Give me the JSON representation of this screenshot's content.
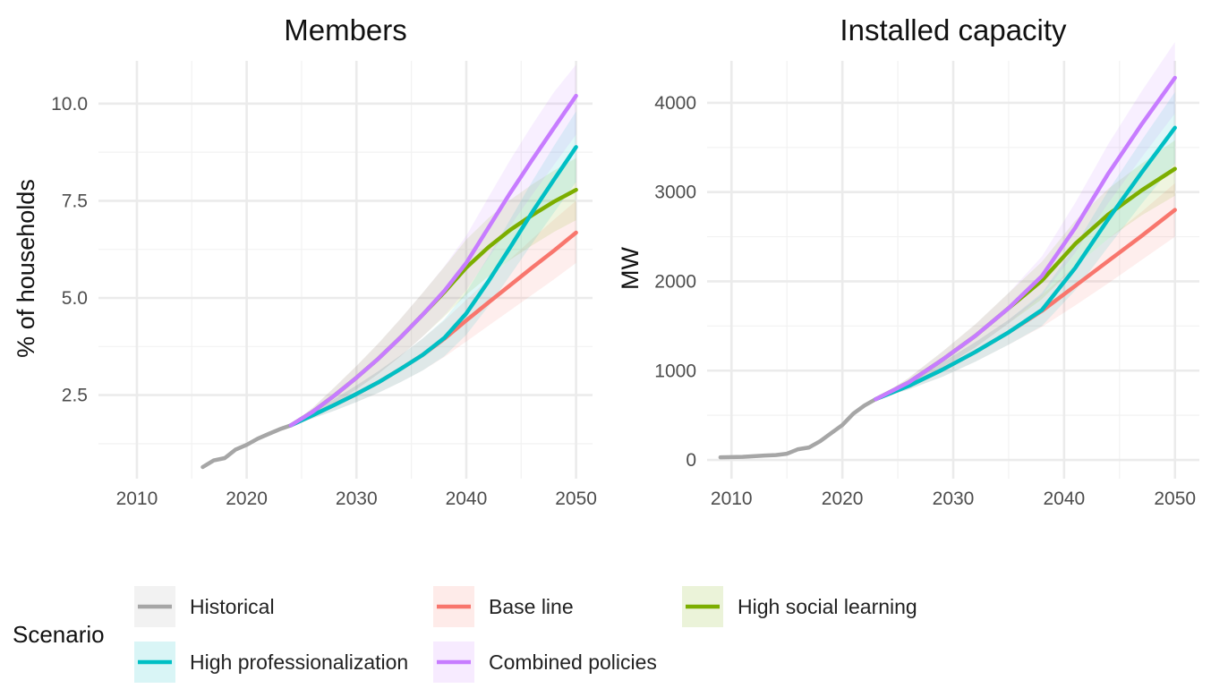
{
  "chart_data": [
    {
      "type": "line",
      "title": "Members",
      "xlabel": "",
      "ylabel": "% of households",
      "xlim": [
        2006.5,
        2051.5
      ],
      "ylim": [
        0.35,
        11.1
      ],
      "x_ticks": [
        2010,
        2020,
        2030,
        2040,
        2050
      ],
      "y_ticks": [
        2.5,
        5.0,
        7.5,
        10.0
      ],
      "y_tick_labels": [
        "2.5",
        "5.0",
        "7.5",
        "10.0"
      ],
      "grid": true,
      "historical": {
        "x": [
          2016,
          2017,
          2018,
          2019,
          2020,
          2021,
          2022,
          2023,
          2024
        ],
        "y": [
          0.65,
          0.82,
          0.88,
          1.1,
          1.22,
          1.38,
          1.5,
          1.62,
          1.72
        ]
      },
      "series": [
        {
          "name": "Base line",
          "color": "#F8766D",
          "x": [
            2024,
            2026,
            2028,
            2030,
            2032,
            2034,
            2036,
            2038,
            2040,
            2042,
            2044,
            2046,
            2048,
            2050
          ],
          "y": [
            1.72,
            1.98,
            2.25,
            2.53,
            2.83,
            3.17,
            3.53,
            3.95,
            4.42,
            4.88,
            5.33,
            5.78,
            6.22,
            6.68
          ],
          "lower": [
            1.72,
            1.9,
            2.1,
            2.32,
            2.56,
            2.83,
            3.13,
            3.48,
            3.88,
            4.28,
            4.68,
            5.08,
            5.48,
            5.9
          ],
          "upper": [
            1.72,
            2.06,
            2.4,
            2.75,
            3.12,
            3.52,
            3.95,
            4.42,
            4.95,
            5.48,
            6.0,
            6.52,
            7.02,
            7.5
          ]
        },
        {
          "name": "High social learning",
          "color": "#7CAE00",
          "x": [
            2024,
            2026,
            2028,
            2030,
            2032,
            2034,
            2036,
            2038,
            2040,
            2042,
            2044,
            2046,
            2048,
            2050
          ],
          "y": [
            1.72,
            2.07,
            2.49,
            2.95,
            3.44,
            3.98,
            4.56,
            5.15,
            5.78,
            6.3,
            6.75,
            7.13,
            7.48,
            7.78
          ],
          "lower": [
            1.72,
            1.97,
            2.28,
            2.65,
            3.05,
            3.5,
            4.0,
            4.52,
            5.08,
            5.55,
            5.98,
            6.35,
            6.7,
            7.0
          ],
          "upper": [
            1.72,
            2.17,
            2.7,
            3.25,
            3.83,
            4.46,
            5.12,
            5.8,
            6.5,
            7.05,
            7.52,
            7.92,
            8.28,
            8.6
          ]
        },
        {
          "name": "High professionalization",
          "color": "#00BFC4",
          "x": [
            2024,
            2026,
            2028,
            2030,
            2032,
            2034,
            2036,
            2038,
            2040,
            2042,
            2044,
            2046,
            2048,
            2050
          ],
          "y": [
            1.72,
            1.98,
            2.25,
            2.53,
            2.83,
            3.17,
            3.53,
            3.97,
            4.6,
            5.42,
            6.3,
            7.2,
            8.05,
            8.88
          ],
          "lower": [
            1.72,
            1.9,
            2.1,
            2.32,
            2.56,
            2.83,
            3.13,
            3.5,
            4.05,
            4.78,
            5.58,
            6.4,
            7.2,
            7.98
          ],
          "upper": [
            1.72,
            2.06,
            2.4,
            2.75,
            3.12,
            3.52,
            3.95,
            4.45,
            5.15,
            6.06,
            7.02,
            8.0,
            8.92,
            9.8
          ]
        },
        {
          "name": "Combined policies",
          "color": "#C77CFF",
          "x": [
            2024,
            2026,
            2028,
            2030,
            2032,
            2034,
            2036,
            2038,
            2040,
            2042,
            2044,
            2046,
            2048,
            2050
          ],
          "y": [
            1.72,
            2.07,
            2.49,
            2.95,
            3.44,
            3.98,
            4.56,
            5.18,
            5.9,
            6.8,
            7.7,
            8.55,
            9.38,
            10.2
          ],
          "lower": [
            1.72,
            1.97,
            2.28,
            2.65,
            3.05,
            3.5,
            4.0,
            4.55,
            5.2,
            6.02,
            6.85,
            7.65,
            8.43,
            9.2
          ],
          "upper": [
            1.72,
            2.17,
            2.7,
            3.25,
            3.83,
            4.46,
            5.12,
            5.81,
            6.6,
            7.58,
            8.55,
            9.45,
            10.3,
            11.0
          ]
        }
      ]
    },
    {
      "type": "line",
      "title": "Installed capacity",
      "xlabel": "",
      "ylabel": "MW",
      "xlim": [
        2007.8,
        2052.2
      ],
      "ylim": [
        -210,
        4470
      ],
      "x_ticks": [
        2010,
        2020,
        2030,
        2040,
        2050
      ],
      "y_ticks": [
        0,
        1000,
        2000,
        3000,
        4000
      ],
      "y_tick_labels": [
        "0",
        "1000",
        "2000",
        "3000",
        "4000"
      ],
      "grid": true,
      "historical": {
        "x": [
          2009,
          2010,
          2011,
          2012,
          2013,
          2014,
          2015,
          2016,
          2017,
          2018,
          2019,
          2020,
          2021,
          2022,
          2023
        ],
        "y": [
          30,
          32,
          35,
          42,
          50,
          55,
          70,
          120,
          140,
          210,
          300,
          390,
          520,
          610,
          680
        ]
      },
      "series": [
        {
          "name": "Base line",
          "color": "#F8766D",
          "x": [
            2023,
            2026,
            2029,
            2032,
            2035,
            2038,
            2041,
            2044,
            2047,
            2050
          ],
          "y": [
            680,
            830,
            1010,
            1210,
            1430,
            1670,
            1950,
            2230,
            2510,
            2800
          ],
          "lower": [
            680,
            790,
            930,
            1100,
            1290,
            1490,
            1730,
            1980,
            2240,
            2500
          ],
          "upper": [
            680,
            870,
            1090,
            1320,
            1570,
            1850,
            2170,
            2480,
            2780,
            3100
          ]
        },
        {
          "name": "High social learning",
          "color": "#7CAE00",
          "x": [
            2023,
            2026,
            2029,
            2032,
            2035,
            2038,
            2041,
            2044,
            2047,
            2050
          ],
          "y": [
            680,
            870,
            1120,
            1390,
            1700,
            2010,
            2420,
            2750,
            3020,
            3260
          ],
          "lower": [
            680,
            820,
            1030,
            1260,
            1530,
            1800,
            2170,
            2480,
            2740,
            2960
          ],
          "upper": [
            680,
            920,
            1210,
            1520,
            1870,
            2220,
            2680,
            3040,
            3320,
            3580
          ]
        },
        {
          "name": "High professionalization",
          "color": "#00BFC4",
          "x": [
            2023,
            2026,
            2029,
            2032,
            2035,
            2038,
            2041,
            2044,
            2047,
            2050
          ],
          "y": [
            680,
            830,
            1010,
            1210,
            1430,
            1680,
            2150,
            2700,
            3220,
            3720
          ],
          "lower": [
            680,
            790,
            930,
            1100,
            1290,
            1500,
            1900,
            2390,
            2870,
            3320
          ],
          "upper": [
            680,
            870,
            1090,
            1320,
            1570,
            1870,
            2400,
            3020,
            3580,
            4120
          ]
        },
        {
          "name": "Combined policies",
          "color": "#C77CFF",
          "x": [
            2023,
            2026,
            2029,
            2032,
            2035,
            2038,
            2041,
            2044,
            2047,
            2050
          ],
          "y": [
            680,
            870,
            1120,
            1390,
            1700,
            2060,
            2600,
            3210,
            3760,
            4280
          ],
          "lower": [
            680,
            820,
            1030,
            1260,
            1530,
            1840,
            2320,
            2880,
            3390,
            3880
          ],
          "upper": [
            680,
            920,
            1210,
            1520,
            1870,
            2280,
            2880,
            3540,
            4130,
            4680
          ]
        }
      ]
    }
  ],
  "legend": {
    "title": "Scenario",
    "position": "bottom",
    "items": [
      {
        "label": "Historical",
        "color": "#A6A6A6"
      },
      {
        "label": "Base line",
        "color": "#F8766D"
      },
      {
        "label": "High social learning",
        "color": "#7CAE00"
      },
      {
        "label": "High professionalization",
        "color": "#00BFC4"
      },
      {
        "label": "Combined policies",
        "color": "#C77CFF"
      }
    ]
  }
}
